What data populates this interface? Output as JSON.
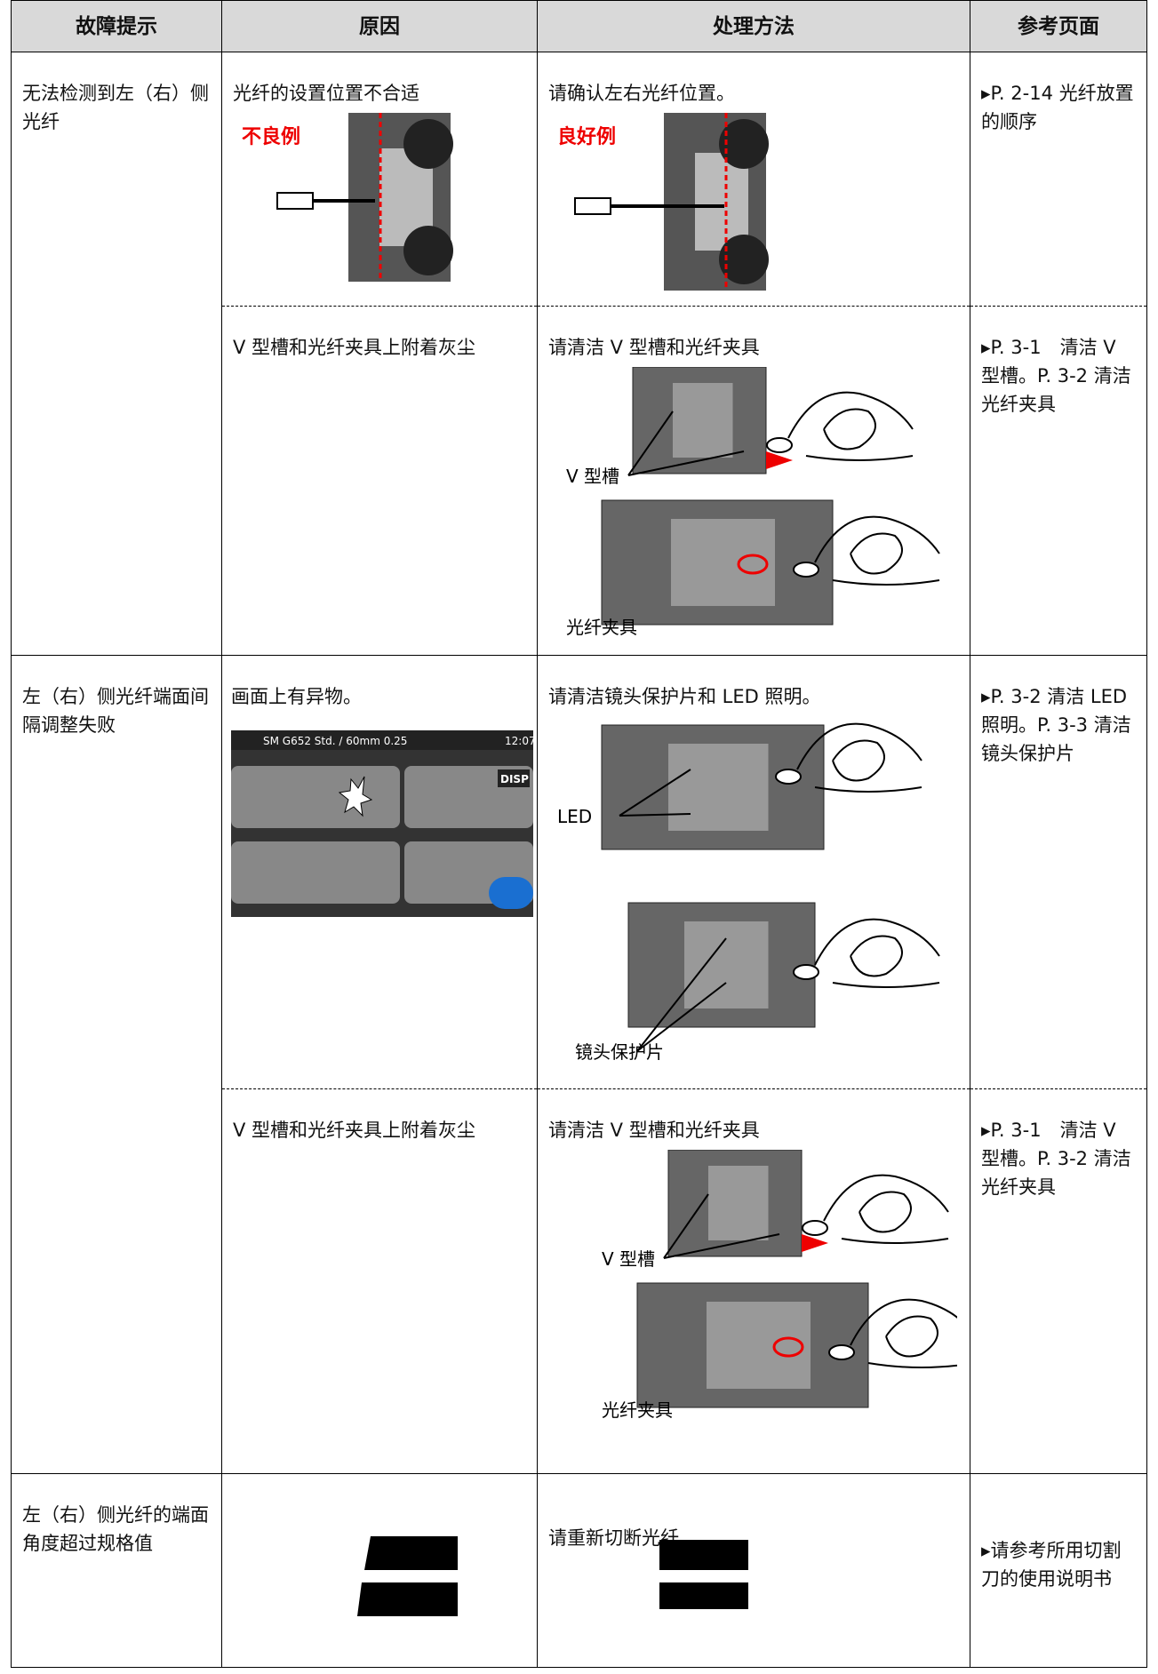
{
  "header": [
    "故障提示",
    "原因",
    "处理方法",
    "参考页面"
  ],
  "rows": [
    {
      "fault": "无法检测到左（右）侧光纤",
      "entries": [
        {
          "cause": "光纤的设置位置不合适",
          "cause_image_label": "不良例",
          "solution": "请确认左右光纤位置。",
          "solution_image_label": "良好例",
          "reference": "▸P. 2-14 光纤放置的顺序"
        },
        {
          "cause": "V 型槽和光纤夹具上附着灰尘",
          "solution": "请清洁 V 型槽和光纤夹具",
          "solution_image_labels": [
            "V 型槽",
            "光纤夹具"
          ],
          "reference": "▸P. 3-1　清洁 V 型槽。P. 3-2 清洁光纤夹具"
        }
      ]
    },
    {
      "fault": "左（右）侧光纤端面间隔调整失败",
      "entries": [
        {
          "cause": "画面上有异物。",
          "screen": {
            "menu": "SM G652 Std. / 60mm 0.25",
            "time": "12:07",
            "button": "DISP"
          },
          "solution": "请清洁镜头保护片和 LED 照明。",
          "solution_image_labels": [
            "LED",
            "镜头保护片"
          ],
          "reference": "▸P. 3-2 清洁 LED 照明。P. 3-3 清洁镜头保护片"
        },
        {
          "cause": "V 型槽和光纤夹具上附着灰尘",
          "solution": "请清洁 V 型槽和光纤夹具",
          "solution_image_labels": [
            "V 型槽",
            "光纤夹具"
          ],
          "reference": "▸P. 3-1　清洁 V 型槽。P. 3-2 清洁光纤夹具"
        }
      ]
    },
    {
      "fault": "左（右）侧光纤的端面角度超过规格值",
      "entries": [
        {
          "solution": "请重新切断光纤",
          "reference": "▸请参考所用切割刀的使用说明书"
        }
      ]
    }
  ]
}
